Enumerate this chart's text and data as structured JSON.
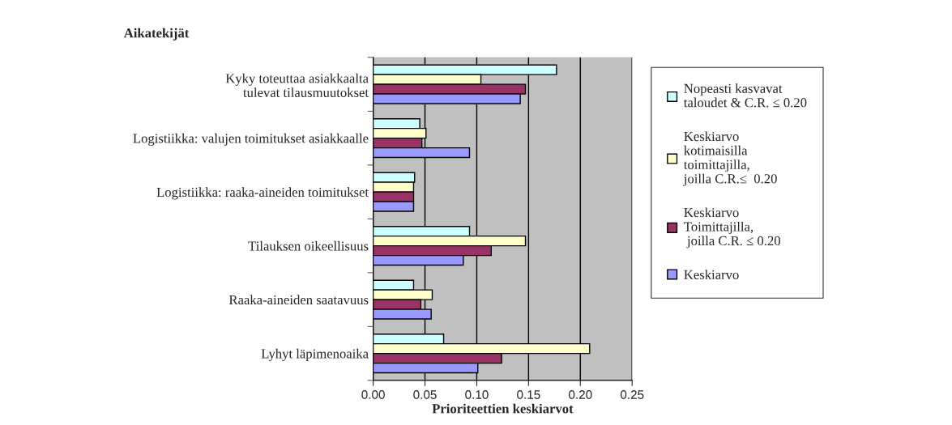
{
  "chart_data": {
    "type": "bar",
    "orientation": "horizontal",
    "ylabel": "Aikatekijät",
    "xlabel": "Prioriteettien keskiarvot",
    "categories": [
      "Kyky toteuttaa asiakkaalta\ntulevat tilausmuutokset",
      "Logistiikka: valujen toimitukset asiakkaalle",
      "Logistiikka: raaka-aineiden toimitukset",
      "Tilauksen oikeellisuus",
      "Raaka-aineiden saatavuus",
      "Lyhyt läpimenoaika"
    ],
    "series": [
      {
        "name": "Nopeasti kasvavat\ntaloudet & C.R. ≤ 0.20",
        "color": "#ccffff",
        "values": [
          0.177,
          0.045,
          0.04,
          0.093,
          0.039,
          0.068
        ]
      },
      {
        "name": "Keskiarvo\nkotimaisilla\ntoimittajilla,\njoilla C.R.≤  0.20",
        "color": "#ffffcc",
        "values": [
          0.104,
          0.051,
          0.039,
          0.147,
          0.057,
          0.209
        ]
      },
      {
        "name": "Keskiarvo\nToimittajilla,\n joilla C.R. ≤ 0.20",
        "color": "#993366",
        "values": [
          0.147,
          0.047,
          0.039,
          0.114,
          0.046,
          0.124
        ]
      },
      {
        "name": "Keskiarvo",
        "color": "#9999ff",
        "values": [
          0.142,
          0.093,
          0.039,
          0.087,
          0.056,
          0.101
        ]
      }
    ],
    "xlim": [
      0,
      0.25
    ],
    "xticks": [
      {
        "value": 0,
        "label": "0.00"
      },
      {
        "value": 0.05,
        "label": "0.05"
      },
      {
        "value": 0.1,
        "label": "0.10"
      },
      {
        "value": 0.15,
        "label": "0.15"
      },
      {
        "value": 0.2,
        "label": "0.20"
      },
      {
        "value": 0.25,
        "label": "0.25"
      }
    ],
    "grid": "x",
    "legend": "right"
  }
}
